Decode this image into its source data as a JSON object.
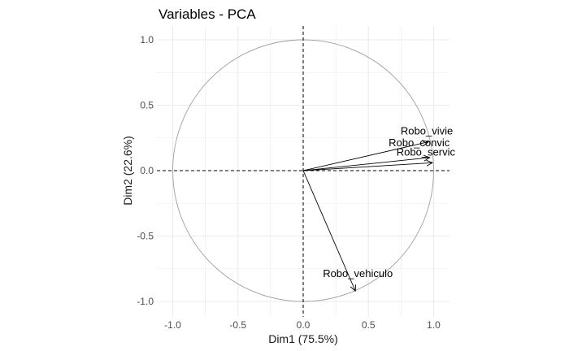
{
  "chart_data": {
    "type": "scatter",
    "title": "Variables - PCA",
    "xlabel": "Dim1 (75.5%)",
    "ylabel": "Dim2 (22.6%)",
    "xlim": [
      -1.0,
      1.0
    ],
    "ylim": [
      -1.0,
      1.0
    ],
    "xticks": [
      "-1.0",
      "-0.5",
      "0.0",
      "0.5",
      "1.0"
    ],
    "yticks": [
      "-1.0",
      "-0.5",
      "0.0",
      "0.5",
      "1.0"
    ],
    "grid": true,
    "correlation_circle": true,
    "variables": [
      {
        "name": "Robo_vivienda",
        "label": "Robo_vivie",
        "x": 0.96,
        "y": 0.22
      },
      {
        "name": "Robo_convivencia",
        "label": "Robo_convic",
        "x": 0.97,
        "y": 0.1
      },
      {
        "name": "Robo_servicio",
        "label": "Robo_servic",
        "x": 0.99,
        "y": 0.06
      },
      {
        "name": "Robo_vehiculo",
        "label": "Robo_vehiculo",
        "x": 0.4,
        "y": -0.92
      }
    ],
    "colors": {
      "arrow": "#000000",
      "circle": "#9e9e9e",
      "grid": "#ebebeb",
      "axis_text": "#4d4d4d"
    }
  }
}
